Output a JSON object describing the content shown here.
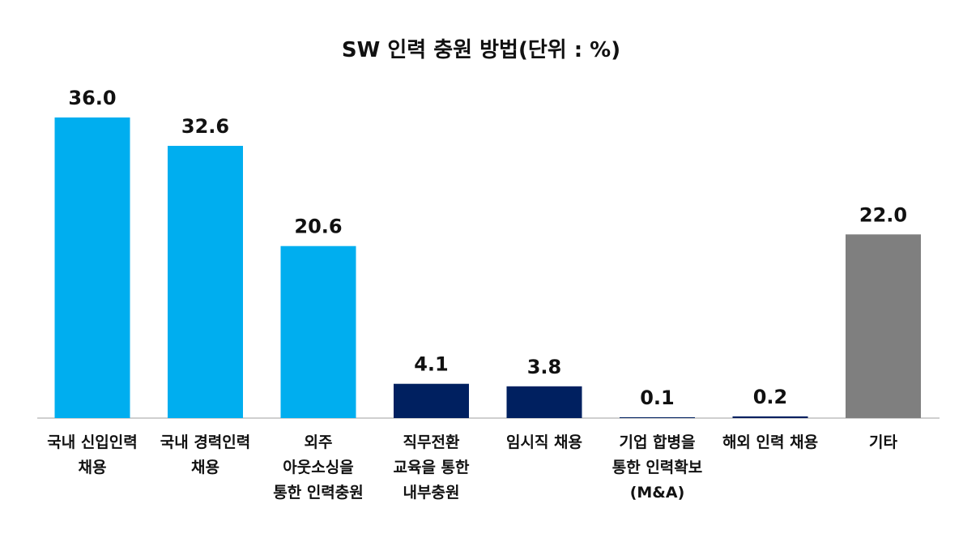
{
  "chart_data": {
    "type": "bar",
    "title": "SW 인력 충원 방법(단위 : %)",
    "categories": [
      [
        "국내 신입인력",
        "채용"
      ],
      [
        "국내 경력인력",
        "채용"
      ],
      [
        "외주",
        "아웃소싱을",
        "통한 인력충원"
      ],
      [
        "직무전환",
        "교육을 통한",
        "내부충원"
      ],
      [
        "임시직 채용"
      ],
      [
        "기업 합병을",
        "통한 인력확보",
        "(M&A)"
      ],
      [
        "해외 인력 채용"
      ],
      [
        "기타"
      ]
    ],
    "values": [
      36.0,
      32.6,
      20.6,
      4.1,
      3.8,
      0.1,
      0.2,
      22.0
    ],
    "value_labels": [
      "36.0",
      "32.6",
      "20.6",
      "4.1",
      "3.8",
      "0.1",
      "0.2",
      "22.0"
    ],
    "colors": [
      "#00AEEF",
      "#00AEEF",
      "#00AEEF",
      "#002060",
      "#002060",
      "#002060",
      "#002060",
      "#7F7F7F"
    ],
    "ylim": [
      0,
      36.0
    ],
    "grid": false,
    "legend": "none",
    "axis_color": "#BFBFBF"
  }
}
